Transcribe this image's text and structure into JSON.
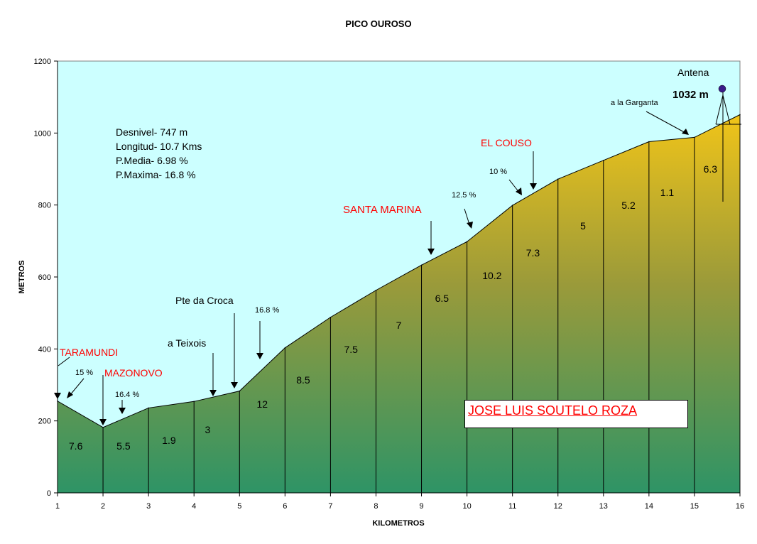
{
  "chart_data": {
    "type": "area",
    "title": "PICO OUROSO",
    "xlabel": "KILOMETROS",
    "ylabel": "METROS",
    "xlim": [
      1,
      16
    ],
    "ylim": [
      0,
      1200
    ],
    "x_ticks": [
      "1",
      "2",
      "3",
      "4",
      "5",
      "6",
      "7",
      "8",
      "9",
      "10",
      "11",
      "12",
      "13",
      "14",
      "15",
      "16"
    ],
    "y_ticks": [
      "0",
      "200",
      "400",
      "600",
      "800",
      "1000",
      "1200"
    ],
    "profile": [
      {
        "x": 1,
        "y": 255
      },
      {
        "x": 2,
        "y": 182
      },
      {
        "x": 3,
        "y": 236
      },
      {
        "x": 4,
        "y": 254
      },
      {
        "x": 5,
        "y": 283
      },
      {
        "x": 6,
        "y": 403
      },
      {
        "x": 7,
        "y": 488
      },
      {
        "x": 8,
        "y": 563
      },
      {
        "x": 9,
        "y": 633
      },
      {
        "x": 10,
        "y": 698
      },
      {
        "x": 11,
        "y": 799
      },
      {
        "x": 12,
        "y": 872
      },
      {
        "x": 13,
        "y": 924
      },
      {
        "x": 14,
        "y": 976
      },
      {
        "x": 15,
        "y": 988
      },
      {
        "x": 16,
        "y": 1051
      }
    ],
    "segment_gradients": [
      {
        "x": 1.4,
        "label": "7.6"
      },
      {
        "x": 2.45,
        "label": "5.5"
      },
      {
        "x": 3.45,
        "label": "1.9"
      },
      {
        "x": 4.3,
        "label": "3"
      },
      {
        "x": 5.5,
        "label": "12"
      },
      {
        "x": 6.4,
        "label": "8.5"
      },
      {
        "x": 7.45,
        "label": "7.5"
      },
      {
        "x": 8.5,
        "label": "7"
      },
      {
        "x": 9.45,
        "label": "6.5"
      },
      {
        "x": 10.55,
        "label": "10.2"
      },
      {
        "x": 11.45,
        "label": "7.3"
      },
      {
        "x": 12.55,
        "label": "5"
      },
      {
        "x": 13.55,
        "label": "5.2"
      },
      {
        "x": 14.4,
        "label": "1.1"
      },
      {
        "x": 15.35,
        "label": "6.3"
      }
    ],
    "info_lines": [
      "Desnivel- 747 m",
      "Longitud- 10.7 Kms",
      "P.Media- 6.98 %",
      "P.Maxima- 16.8 %"
    ],
    "annotations": {
      "taramundi": "TARAMUNDI",
      "mazonovo": "MAZONOVO",
      "pct_15": "15 %",
      "pct_164": "16.4 %",
      "teixois": "a Teixois",
      "pte_croca": "Pte da Croca",
      "pct_168": "16.8 %",
      "santa_marina": "SANTA MARINA",
      "pct_125": "12.5 %",
      "pct_10": "10 %",
      "el_couso": "EL COUSO",
      "garganta": "a la Garganta",
      "antena": "Antena",
      "summit": "1032 m"
    },
    "colors": {
      "sky": "#ccffff",
      "fill_top": "#f0c419",
      "fill_bottom": "#2e9466",
      "red_text": "#ff0000",
      "summit_dot": "#3a1a8a"
    }
  },
  "author": "JOSE LUIS SOUTELO ROZA"
}
